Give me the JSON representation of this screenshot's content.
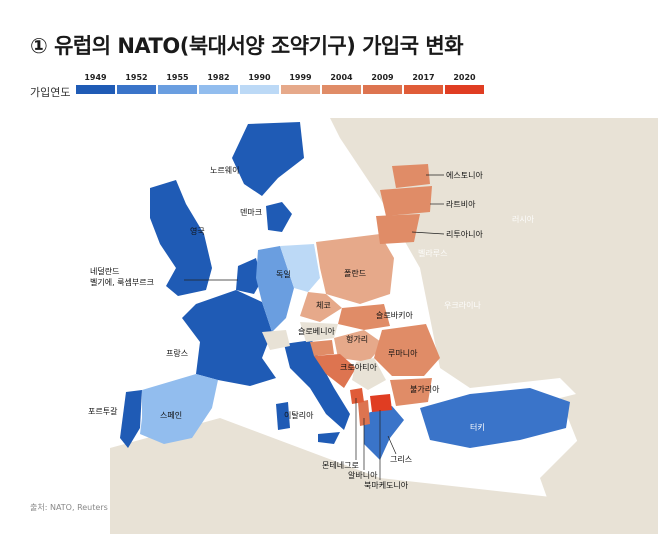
{
  "title": "① 유럽의 NATO(북대서양 조약기구) 가입국 변화",
  "legend": {
    "label": "가입연도",
    "items": [
      {
        "year": "1949",
        "color": "#1f5bb5"
      },
      {
        "year": "1952",
        "color": "#3a74c9"
      },
      {
        "year": "1955",
        "color": "#6a9ee0"
      },
      {
        "year": "1982",
        "color": "#92bdee"
      },
      {
        "year": "1990",
        "color": "#bcd9f6"
      },
      {
        "year": "1999",
        "color": "#e6a98a"
      },
      {
        "year": "2004",
        "color": "#e08c67"
      },
      {
        "year": "2009",
        "color": "#dd7450"
      },
      {
        "year": "2017",
        "color": "#e05c38"
      },
      {
        "year": "2020",
        "color": "#e03d22"
      }
    ]
  },
  "countries": {
    "norway": "노르웨이",
    "denmark": "덴마크",
    "uk": "영국",
    "netherlands": "네덜란드",
    "belgium_lux": "벨기에, 룩셈부르크",
    "france": "프랑스",
    "portugal": "포르투갈",
    "spain": "스페인",
    "italy": "이탈리아",
    "germany": "독일",
    "poland": "폴란드",
    "czech": "체코",
    "slovakia": "슬로바키아",
    "hungary": "헝가리",
    "slovenia": "슬로베니아",
    "croatia": "크로아티아",
    "romania": "루마니아",
    "bulgaria": "불가리아",
    "montenegro": "몬테네그로",
    "albania": "알바니아",
    "north_macedonia": "북마케도니아",
    "greece": "그리스",
    "turkey": "터키",
    "estonia": "에스토니아",
    "latvia": "라트비아",
    "lithuania": "리투아니아"
  },
  "non_members": {
    "russia": "러시아",
    "belarus": "벨라루스",
    "ukraine": "우크라이나"
  },
  "source": "출처: NATO, Reuters"
}
